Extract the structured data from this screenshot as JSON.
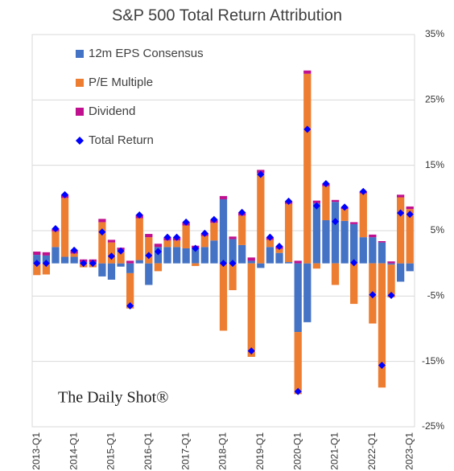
{
  "chart_data": {
    "type": "bar",
    "stacked": true,
    "title": "S&P 500 Total Return Attribution",
    "watermark": "The Daily Shot®",
    "categories": [
      "2013-Q1",
      null,
      null,
      null,
      "2014-Q1",
      null,
      null,
      null,
      "2015-Q1",
      null,
      null,
      null,
      "2016-Q1",
      null,
      null,
      null,
      "2017-Q1",
      null,
      null,
      null,
      "2018-Q1",
      null,
      null,
      null,
      "2019-Q1",
      null,
      null,
      null,
      "2020-Q1",
      null,
      null,
      null,
      "2021-Q1",
      null,
      null,
      null,
      "2022-Q1",
      null,
      null,
      null,
      "2023-Q1"
    ],
    "series": [
      {
        "name": "12m EPS Consensus",
        "type": "bar",
        "color": "#4472c4",
        "values": [
          1.3,
          1.2,
          2.5,
          1.0,
          1.0,
          0.2,
          0.2,
          -2,
          -2.5,
          -0.5,
          -1.5,
          0.5,
          -3.3,
          2.5,
          2.5,
          2.5,
          2.3,
          2.3,
          2.5,
          3.5,
          9.8,
          3.7,
          2.8,
          0.4,
          -0.7,
          2.5,
          1.6,
          0.2,
          -10.5,
          -9,
          9.2,
          6.6,
          9.4,
          6.5,
          6,
          4,
          4,
          3.2,
          -0.2,
          -2.8,
          -1.2
        ]
      },
      {
        "name": "P/E Multiple",
        "type": "bar",
        "color": "#ed7d31",
        "values": [
          -1.8,
          -1.7,
          2.4,
          9.0,
          0.5,
          -0.6,
          -0.6,
          6.3,
          3.2,
          2.0,
          -5.4,
          6.4,
          4,
          -1.2,
          1,
          1,
          3.5,
          -0.4,
          1.7,
          2.7,
          -10.3,
          -4.1,
          4.5,
          -14.3,
          13.8,
          1.1,
          0.6,
          8.9,
          -9.5,
          29,
          -0.8,
          5.2,
          -3.3,
          1.8,
          -6.2,
          6.7,
          -9.2,
          -19,
          -5,
          10.1,
          8.3
        ]
      },
      {
        "name": "Dividend",
        "type": "bar",
        "color": "#c0108f",
        "values": [
          0.5,
          0.5,
          0.4,
          0.5,
          0.5,
          0.4,
          0.4,
          0.5,
          0.4,
          0.4,
          0.4,
          0.5,
          0.5,
          0.5,
          0.5,
          0.5,
          0.5,
          0.4,
          0.4,
          0.5,
          0.5,
          0.4,
          0.5,
          0.5,
          0.5,
          0.4,
          0.4,
          0.4,
          0.4,
          0.5,
          0.4,
          0.4,
          0.3,
          0.3,
          0.3,
          0.3,
          0.4,
          0.2,
          0.3,
          0.4,
          0.4
        ]
      },
      {
        "name": "Total Return",
        "type": "scatter",
        "color": "#0000ff",
        "values": [
          0,
          0,
          5.3,
          10.5,
          2,
          0,
          0,
          4.8,
          1.1,
          1.9,
          -6.5,
          7.4,
          1.2,
          1.8,
          4,
          4,
          6.3,
          2.3,
          4.6,
          6.7,
          0,
          0,
          7.8,
          -13.4,
          13.6,
          4,
          2.6,
          9.5,
          -19.6,
          20.5,
          8.8,
          12.2,
          6.4,
          8.6,
          0.1,
          11,
          -4.8,
          -15.6,
          -4.9,
          7.7,
          7.5
        ]
      }
    ],
    "ylim": [
      -25,
      35
    ],
    "yticks": [
      {
        "value": -25,
        "label": "-25%"
      },
      {
        "value": -15,
        "label": "-15%"
      },
      {
        "value": -5,
        "label": "-5%"
      },
      {
        "value": 5,
        "label": "5%"
      },
      {
        "value": 15,
        "label": "15%"
      },
      {
        "value": 25,
        "label": "25%"
      },
      {
        "value": 35,
        "label": "35%"
      }
    ],
    "grid": true,
    "legend": "top-left"
  }
}
